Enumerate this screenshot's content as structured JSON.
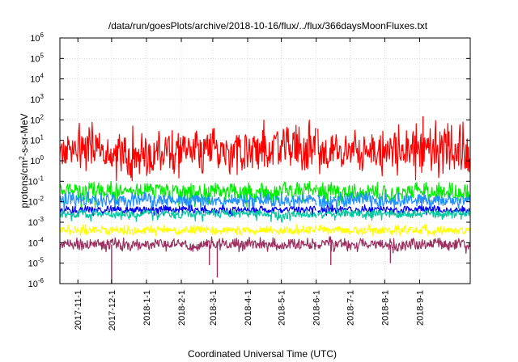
{
  "chart_data": {
    "type": "line",
    "title": "/data/run/goesPlots/archive/2018-10-16/flux/../flux/366daysMoonFluxes.txt",
    "xlabel": "Coordinated Universal Time (UTC)",
    "ylabel": {
      "prefix": "protons/cm",
      "superscript": "2",
      "suffix": "-s-sr-MeV"
    },
    "x_range": [
      "2017-10-16",
      "2018-10-16"
    ],
    "y_scale": "log",
    "ylim": [
      1e-06,
      1000000.0
    ],
    "y_ticks": [
      {
        "base": "10",
        "exp": "-6"
      },
      {
        "base": "10",
        "exp": "-5"
      },
      {
        "base": "10",
        "exp": "-4"
      },
      {
        "base": "10",
        "exp": "-3"
      },
      {
        "base": "10",
        "exp": "-2"
      },
      {
        "base": "10",
        "exp": "-1"
      },
      {
        "base": "10",
        "exp": "0"
      },
      {
        "base": "10",
        "exp": "1"
      },
      {
        "base": "10",
        "exp": "2"
      },
      {
        "base": "10",
        "exp": "3"
      },
      {
        "base": "10",
        "exp": "4"
      },
      {
        "base": "10",
        "exp": "5"
      },
      {
        "base": "10",
        "exp": "6"
      }
    ],
    "x_ticks": [
      {
        "label": "2017-11-1",
        "date": "2017-11-01"
      },
      {
        "label": "2017-12-1",
        "date": "2017-12-01"
      },
      {
        "label": "2018-1-1",
        "date": "2018-01-01"
      },
      {
        "label": "2018-2-1",
        "date": "2018-02-01"
      },
      {
        "label": "2018-3-1",
        "date": "2018-03-01"
      },
      {
        "label": "2018-4-1",
        "date": "2018-04-01"
      },
      {
        "label": "2018-5-1",
        "date": "2018-05-01"
      },
      {
        "label": "2018-6-1",
        "date": "2018-06-01"
      },
      {
        "label": "2018-7-1",
        "date": "2018-07-01"
      },
      {
        "label": "2018-8-1",
        "date": "2018-08-01"
      },
      {
        "label": "2018-9-1",
        "date": "2018-09-01"
      }
    ],
    "grid": true,
    "legend": "none",
    "series": [
      {
        "color": "#ff0000",
        "typical": 3,
        "min": 0.1,
        "max": 100,
        "spikes": [
          {
            "date": "2018-09-04",
            "value": 150
          }
        ]
      },
      {
        "color": "#00ee00",
        "typical": 0.03,
        "min": 0.005,
        "max": 0.1
      },
      {
        "color": "#1e90ff",
        "typical": 0.012,
        "min": 0.003,
        "max": 0.03
      },
      {
        "color": "#0000ff",
        "typical": 0.004,
        "min": 0.002,
        "max": 0.007
      },
      {
        "color": "#00c8a0",
        "typical": 0.0025,
        "min": 0.001,
        "max": 0.004
      },
      {
        "color": "#ffff00",
        "typical": 0.0004,
        "min": 0.0002,
        "max": 0.0008
      },
      {
        "color": "#9b3060",
        "typical": 8e-05,
        "min": 3e-05,
        "max": 0.0002,
        "dips": [
          {
            "date": "2017-12-01",
            "value": 1e-06
          },
          {
            "date": "2018-02-26",
            "value": 8e-06
          },
          {
            "date": "2018-03-05",
            "value": 2e-06
          },
          {
            "date": "2018-06-14",
            "value": 8e-06
          },
          {
            "date": "2018-08-06",
            "value": 1e-05
          }
        ]
      }
    ]
  }
}
